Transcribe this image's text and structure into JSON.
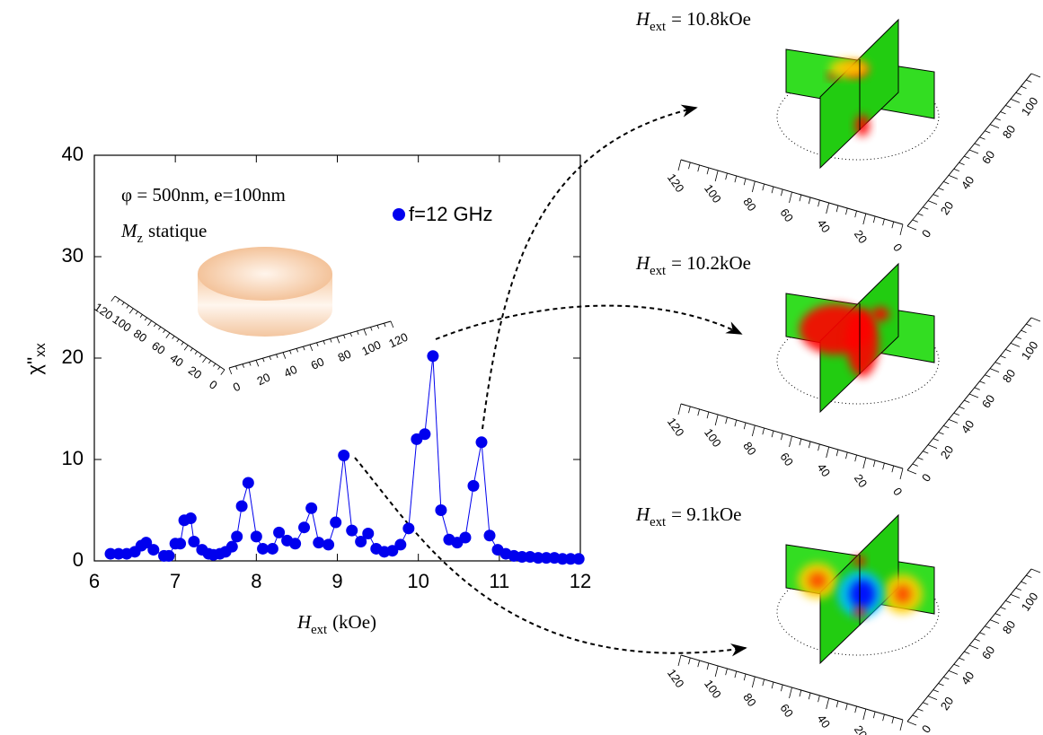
{
  "chart_data": {
    "type": "line",
    "markers": true,
    "x": [
      6.2,
      6.3,
      6.4,
      6.5,
      6.58,
      6.64,
      6.73,
      6.86,
      6.92,
      7.0,
      7.06,
      7.11,
      7.19,
      7.23,
      7.33,
      7.41,
      7.47,
      7.55,
      7.62,
      7.7,
      7.76,
      7.82,
      7.9,
      8.0,
      8.08,
      8.2,
      8.28,
      8.38,
      8.48,
      8.59,
      8.68,
      8.77,
      8.89,
      8.98,
      9.08,
      9.18,
      9.29,
      9.38,
      9.48,
      9.58,
      9.68,
      9.78,
      9.88,
      9.98,
      10.08,
      10.18,
      10.28,
      10.38,
      10.48,
      10.58,
      10.68,
      10.78,
      10.88,
      10.98,
      11.08,
      11.18,
      11.28,
      11.38,
      11.48,
      11.58,
      11.68,
      11.78,
      11.88,
      11.98
    ],
    "series": [
      {
        "name": "f=12 GHz",
        "color": "#0000ee",
        "values": [
          0.7,
          0.7,
          0.7,
          0.9,
          1.5,
          1.8,
          1.1,
          0.5,
          0.5,
          1.7,
          1.7,
          4.0,
          4.2,
          1.9,
          1.1,
          0.7,
          0.6,
          0.7,
          0.9,
          1.4,
          2.4,
          5.4,
          7.7,
          2.4,
          1.2,
          1.2,
          2.8,
          2.0,
          1.7,
          3.3,
          5.2,
          1.8,
          1.6,
          3.8,
          10.4,
          3.0,
          1.9,
          2.7,
          1.2,
          0.9,
          1.0,
          1.6,
          3.2,
          12.0,
          12.5,
          20.2,
          5.0,
          2.1,
          1.8,
          2.3,
          7.4,
          11.7,
          2.5,
          1.1,
          0.7,
          0.5,
          0.4,
          0.4,
          0.3,
          0.3,
          0.3,
          0.2,
          0.2,
          0.2
        ]
      }
    ],
    "xlim": [
      6,
      12
    ],
    "ylim": [
      0,
      40
    ],
    "xticks": [
      6,
      7,
      8,
      9,
      10,
      11,
      12
    ],
    "yticks": [
      0,
      10,
      20,
      30,
      40
    ],
    "x_label": {
      "symbol": "H",
      "subscript": "ext",
      "text": "(kOe)"
    },
    "y_label": {
      "text": "χ''",
      "subscript": "xx"
    },
    "annotations": [
      {
        "text": "φ = 500nm, e=100nm"
      },
      {
        "symbol": "M",
        "subscript": "z",
        "text": "statique"
      }
    ]
  },
  "inset_axis_ticks": [
    0,
    20,
    40,
    60,
    80,
    100,
    120
  ],
  "panels": [
    {
      "symbol": "H",
      "subscript": "ext",
      "text": "= 10.8kOe"
    },
    {
      "symbol": "H",
      "subscript": "ext",
      "text": "= 10.2kOe"
    },
    {
      "symbol": "H",
      "subscript": "ext",
      "text": "= 9.1kOe"
    }
  ]
}
